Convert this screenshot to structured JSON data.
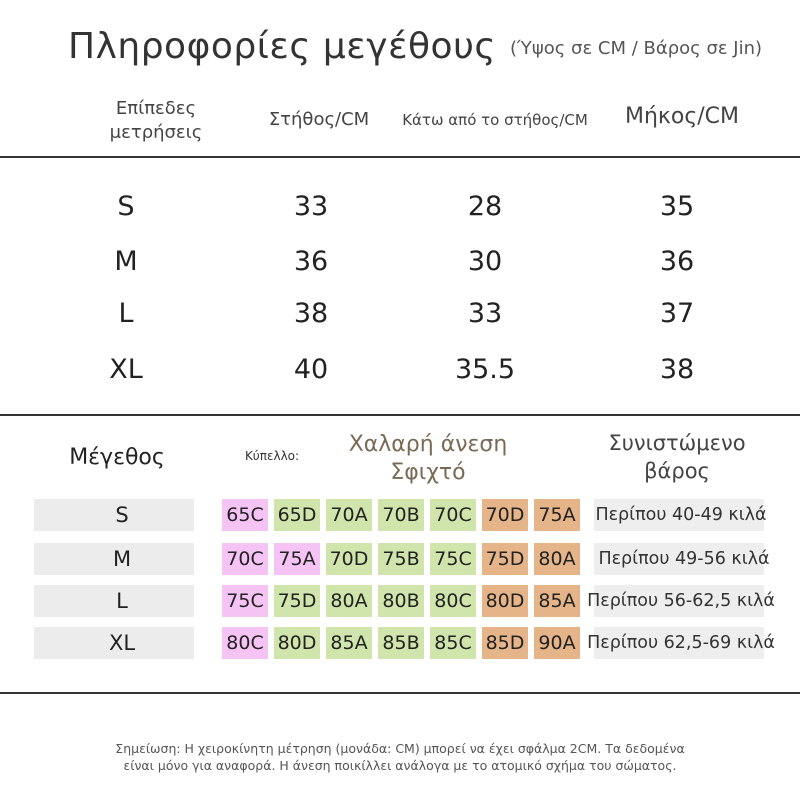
{
  "title": "Πληροφορίες μεγέθους",
  "subtitle": "(Ύψος σε CM / Βάρος σε Jin)",
  "measure_table": {
    "headers": [
      "Επίπεδες μετρήσεις",
      "Στήθος/CM",
      "Κάτω από το στήθος/CM",
      "Μήκος/CM"
    ],
    "rows": [
      [
        "S",
        "33",
        "28",
        "35"
      ],
      [
        "M",
        "36",
        "30",
        "36"
      ],
      [
        "L",
        "38",
        "33",
        "37"
      ],
      [
        "XL",
        "40",
        "35.5",
        "38"
      ]
    ]
  },
  "fit_table": {
    "size_header": "Μέγεθος",
    "cup_header": "Κύπελλο:",
    "fit_header_line1": "Χαλαρή άνεση",
    "fit_header_line2": "Σφιχτό",
    "weight_header": "Συνιστώμενο βάρος",
    "colors": {
      "pink": "#f6c4f4",
      "green": "#cfe5ac",
      "orange": "#e5b489",
      "gray": "#ececec"
    },
    "rows": [
      {
        "size": "S",
        "cups": [
          "65C",
          "65D",
          "70A",
          "70B",
          "70C",
          "70D",
          "75A"
        ],
        "weight": "Περίπου 40-49 κιλά"
      },
      {
        "size": "M",
        "cups": [
          "70C",
          "75A",
          "70D",
          "75B",
          "75C",
          "75D",
          "80A"
        ],
        "weight": "Περίπου 49-56 κιλά"
      },
      {
        "size": "L",
        "cups": [
          "75C",
          "75D",
          "80A",
          "80B",
          "80C",
          "80D",
          "85A"
        ],
        "weight": "Περίπου 56-62,5 κιλά"
      },
      {
        "size": "XL",
        "cups": [
          "80C",
          "80D",
          "85A",
          "85B",
          "85C",
          "85D",
          "90A"
        ],
        "weight": "Περίπου 62,5-69 κιλά"
      }
    ]
  },
  "note": {
    "line1": "Σημείωση: Η χειροκίνητη μέτρηση (μονάδα: CM) μπορεί να έχει σφάλμα 2CM. Τα δεδομένα",
    "line2": "είναι μόνο για αναφορά. Η άνεση ποικίλλει ανάλογα με το ατομικό σχήμα του σώματος."
  }
}
